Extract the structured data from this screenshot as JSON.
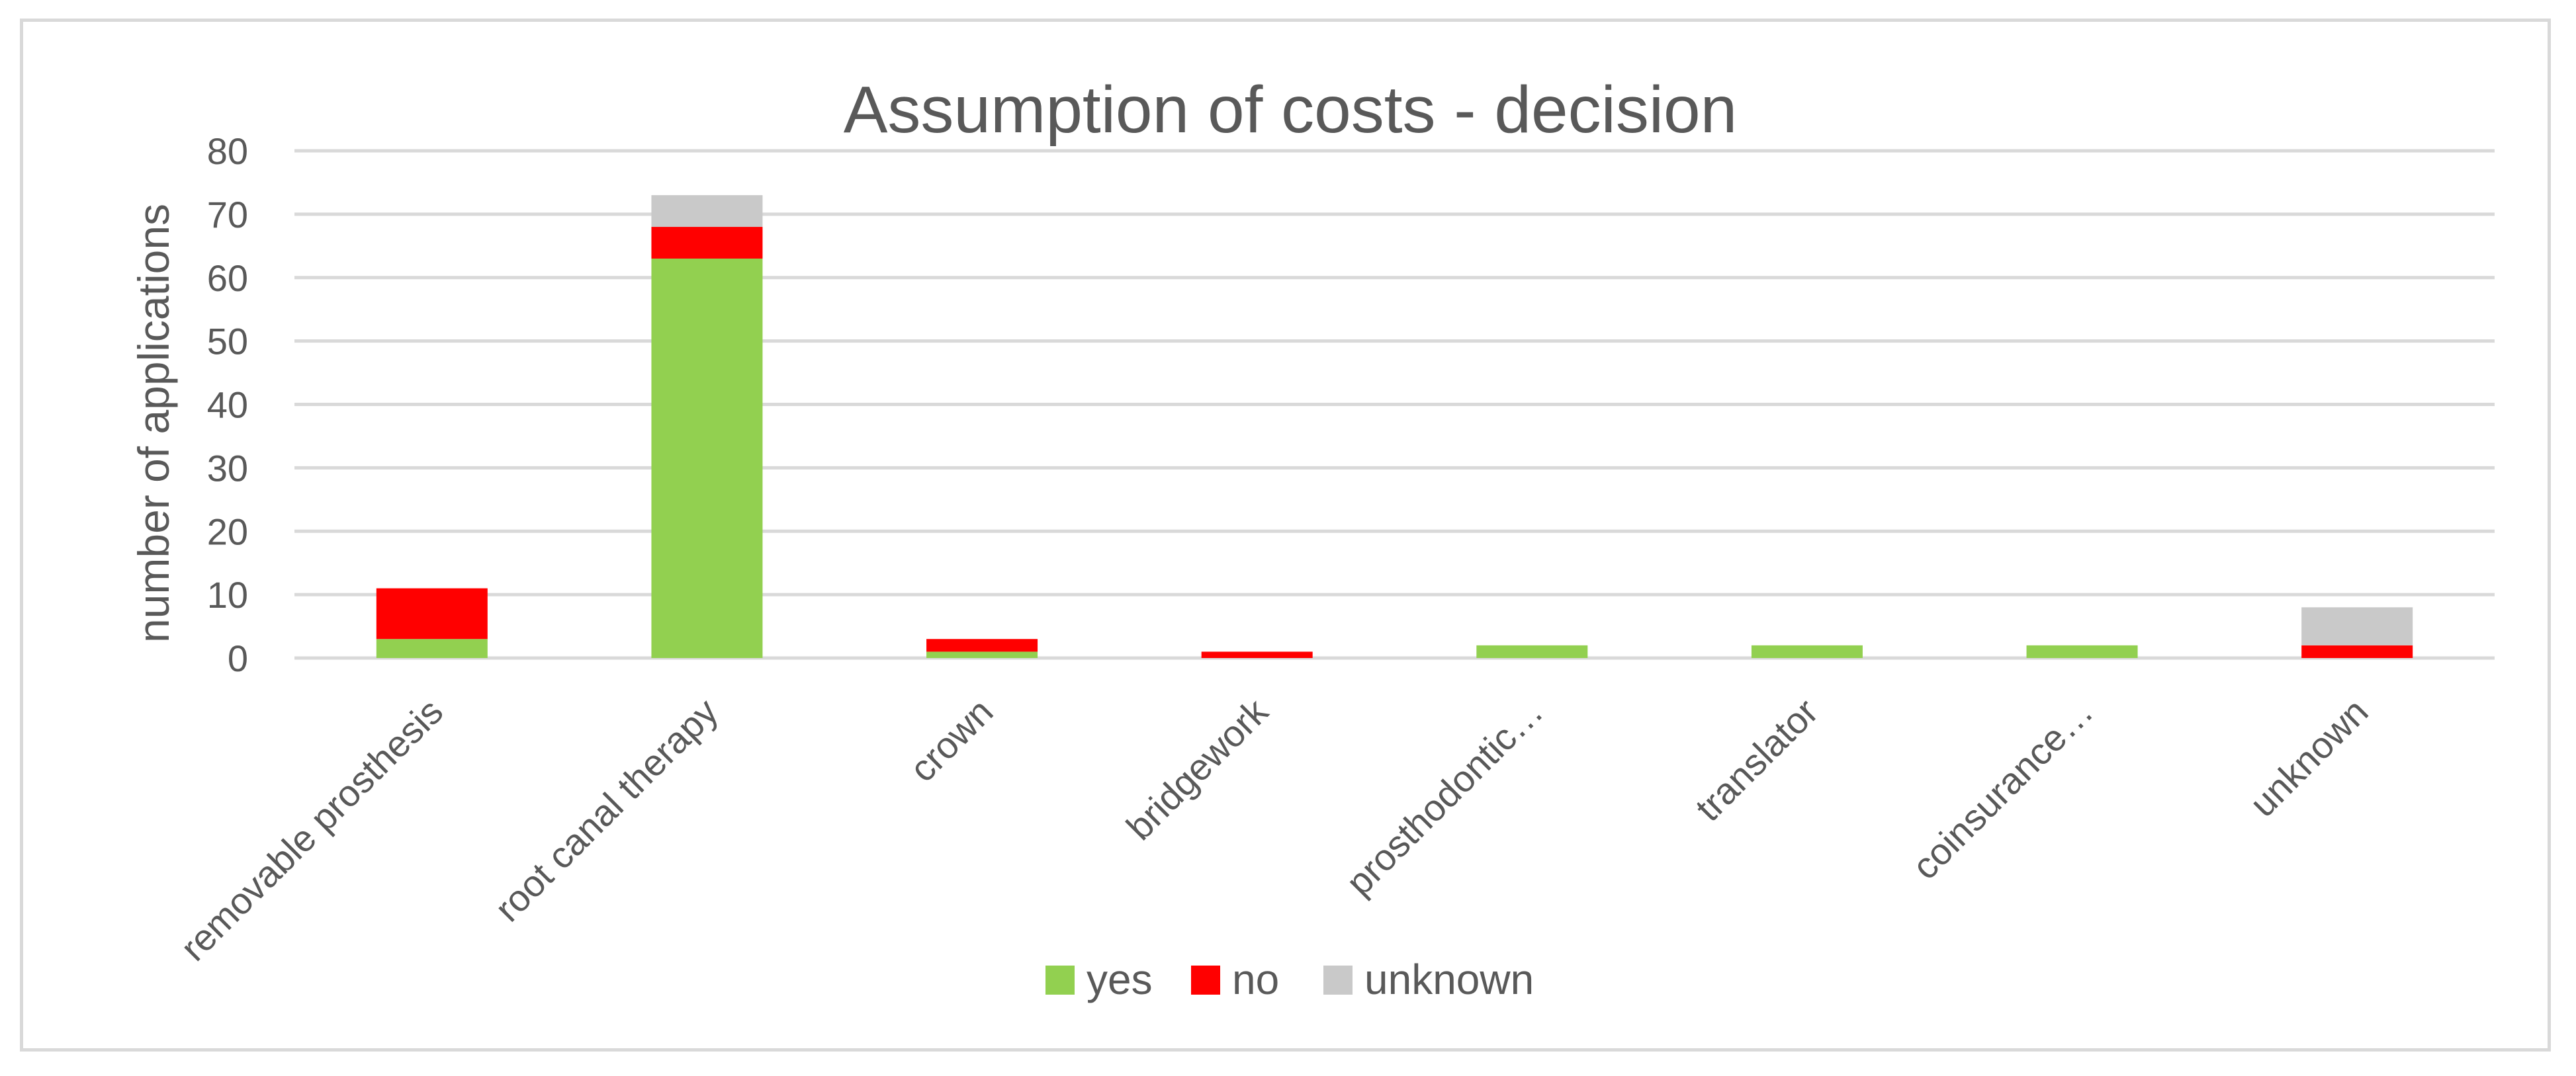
{
  "chart_data": {
    "type": "bar",
    "stacked": true,
    "title": "Assumption of costs - decision",
    "xlabel": "",
    "ylabel": "number of applications",
    "ylim": [
      0,
      80
    ],
    "yticks": [
      0,
      10,
      20,
      30,
      40,
      50,
      60,
      70,
      80
    ],
    "grid": true,
    "legend_position": "bottom",
    "categories": [
      "removable prosthesis",
      "root canal therapy",
      "crown",
      "bridgework",
      "prosthodontic…",
      "translator",
      "coinsurance…",
      "unknown"
    ],
    "series": [
      {
        "name": "yes",
        "color": "#92d050",
        "values": [
          3,
          63,
          1,
          0,
          2,
          2,
          2,
          0
        ]
      },
      {
        "name": "no",
        "color": "#ff0000",
        "values": [
          8,
          5,
          2,
          1,
          0,
          0,
          0,
          2
        ]
      },
      {
        "name": "unknown",
        "color": "#c9c9c9",
        "values": [
          0,
          5,
          0,
          0,
          0,
          0,
          0,
          6
        ]
      }
    ]
  }
}
